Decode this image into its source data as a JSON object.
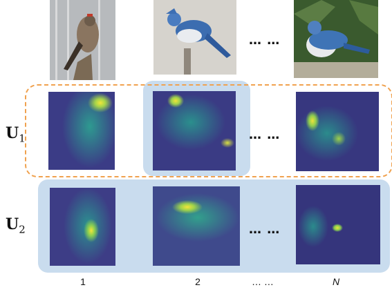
{
  "row_labels": [
    {
      "base": "U",
      "sub": "1"
    },
    {
      "base": "U",
      "sub": "2"
    }
  ],
  "column_labels": [
    "1",
    "2",
    "N"
  ],
  "ellipsis": "… …",
  "colors": {
    "highlight_fill": "#c9dcee",
    "dashed_border": "#f0a14e",
    "heatmap_low": "#3b3c86",
    "heatmap_high": "#f2e53a"
  }
}
